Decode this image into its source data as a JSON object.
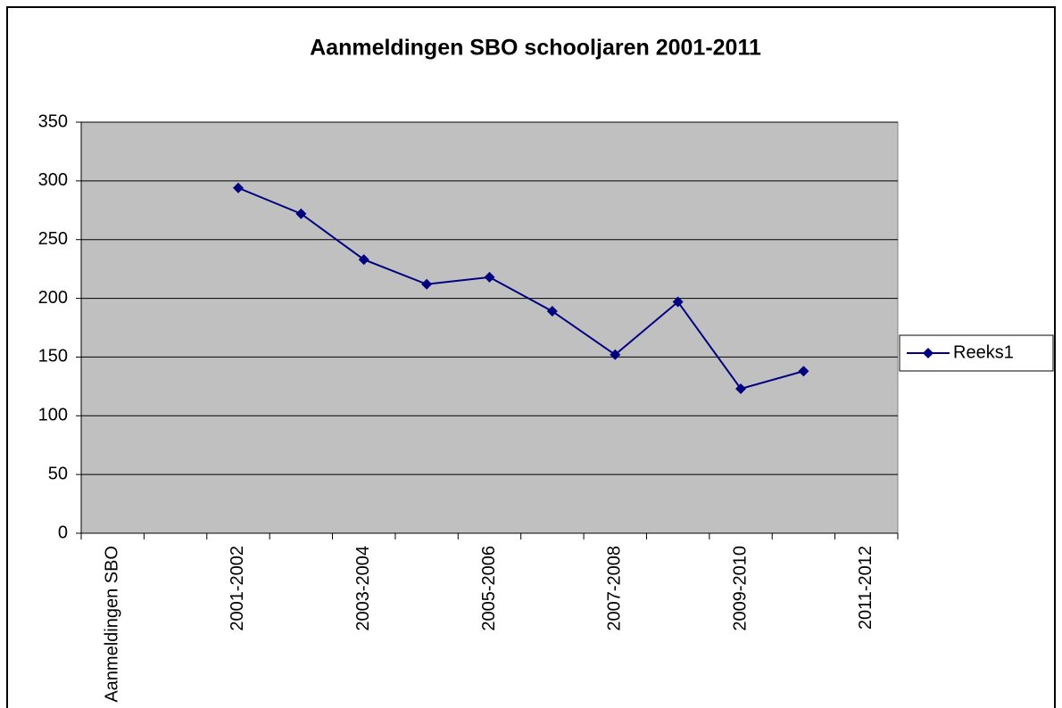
{
  "chart_data": {
    "type": "line",
    "title": "Aanmeldingen SBO schooljaren 2001-2011",
    "categories": [
      "Aanmeldingen SBO",
      null,
      "2001-2002",
      null,
      "2003-2004",
      null,
      "2005-2006",
      null,
      "2007-2008",
      null,
      "2009-2010",
      null,
      "2011-2012"
    ],
    "series": [
      {
        "name": "Reeks1",
        "color": "#000080",
        "values": [
          null,
          null,
          294,
          272,
          233,
          212,
          218,
          189,
          152,
          197,
          123,
          138,
          null
        ]
      }
    ],
    "ylim": [
      0,
      350
    ],
    "yticks": [
      0,
      50,
      100,
      150,
      200,
      250,
      300,
      350
    ],
    "grid": true,
    "legend": "right"
  }
}
